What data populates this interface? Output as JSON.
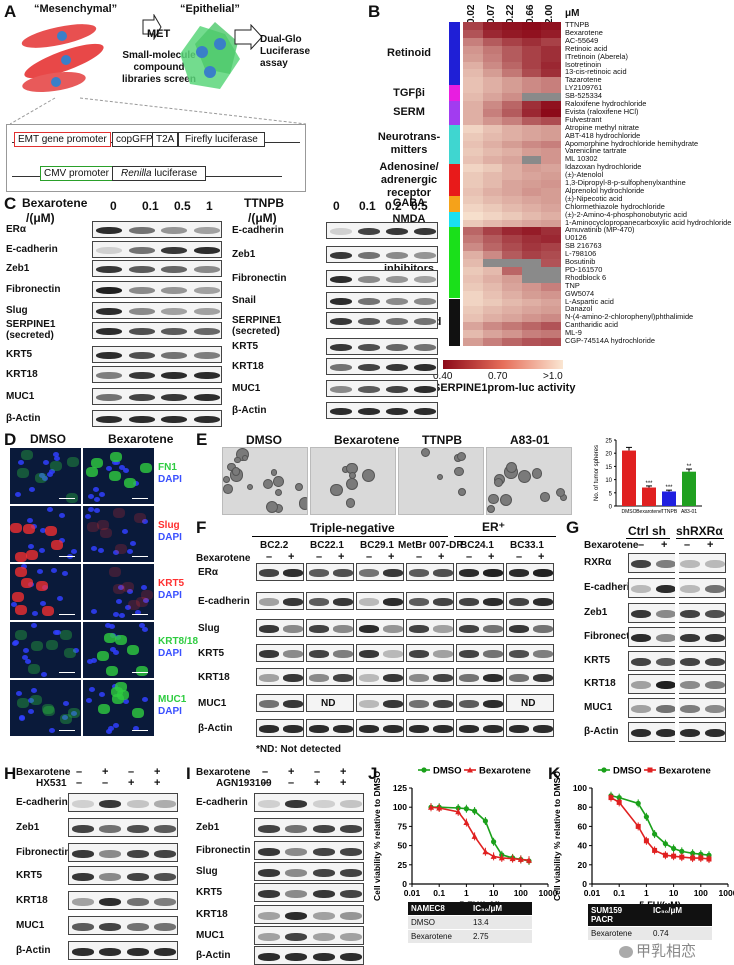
{
  "panel_labels": [
    "A",
    "B",
    "C",
    "D",
    "E",
    "F",
    "G",
    "H",
    "I",
    "J",
    "K"
  ],
  "A": {
    "mesenchymal": "“Mesenchymal”",
    "epithelial": "“Epithelial”",
    "met": "MET",
    "screen": [
      "Small-molecule",
      "compound",
      "libraries screen"
    ],
    "assay": [
      "Dual-Glo",
      "Luciferase",
      "assay"
    ],
    "construct1": {
      "promoter": "EMT gene promoter",
      "g1": "copGFP",
      "g2": "T2A",
      "g3": "Firefly luciferase"
    },
    "construct2": {
      "promoter": "CMV promoter",
      "g1a": "Renilla",
      "g1b": " luciferase"
    }
  },
  "B": {
    "conc": [
      "0.02",
      "0.07",
      "0.22",
      "0.66",
      "2.00"
    ],
    "unit": "μM",
    "compounds": [
      "TTNPB",
      "Bexarotene",
      "AC-55649",
      "Retinoic acid",
      "ITretinoin (Aberela)",
      "Isotretinoin",
      "13-cis-retinoic acid",
      "Tazarotene",
      "LY2109761",
      "SB-525334",
      "Raloxifene hydrochloride",
      "Evista (raloxifene HCl)",
      "Fulvestrant",
      "Atropine methyl nitrate",
      "ABT-418 hydrochloride",
      "Apomorphine hydrochloride hemihydrate",
      "Varenicline tartrate",
      "ML 10302",
      "Idazoxan hydrochloride",
      "(±)-Atenolol",
      "1,3-Dipropyl-8-p-sulfophenylxanthine",
      "Alprenolol hydrochloride",
      "(±)-Nipecotic acid",
      "Chlormethiazole hydrochloride",
      "(±)-2-Amino-4-phosphonobutyric acid",
      "1-Aminocyclopropanecarboxylic acid hydrochloride",
      "Amuvatinib (MP-470)",
      "U0126",
      "SB 216763",
      "L-798106",
      "Bosutinib",
      "PD-161570",
      "Rhodblock 6",
      "TNP",
      "GW5074",
      "L-Aspartic acid",
      "Danazol",
      "N-(4-amino-2-chlorophenyl)phthalimide",
      "Cantharidic acid",
      "ML-9",
      "CGP-74514A hydrochloride"
    ],
    "groups": [
      {
        "label": [
          "Retinoid"
        ],
        "color": "#1f1fd6",
        "start": 0,
        "count": 8
      },
      {
        "label": [
          "TGFβi"
        ],
        "color": "#e81ee0",
        "start": 8,
        "count": 2
      },
      {
        "label": [
          "SERM"
        ],
        "color": "#a23cf0",
        "start": 10,
        "count": 3
      },
      {
        "label": [
          "Neurotrans-",
          "mitters"
        ],
        "color": "#3fd6d0",
        "start": 13,
        "count": 5
      },
      {
        "label": [
          "Adenosine/",
          "adrenergic",
          "receptor"
        ],
        "color": "#e81a1a",
        "start": 18,
        "count": 4
      },
      {
        "label": [
          "GABA"
        ],
        "color": "#f5a21a",
        "start": 22,
        "count": 2
      },
      {
        "label": [
          "NMDA"
        ],
        "color": "#1ae0f0",
        "start": 24,
        "count": 2
      },
      {
        "label": [
          "Kinase",
          "inhibitors"
        ],
        "color": "#1ae01a",
        "start": 26,
        "count": 9
      },
      {
        "label": [
          "Unclassified"
        ],
        "color": "#111111",
        "start": 35,
        "count": 6
      }
    ],
    "heatmap": [
      [
        0.55,
        0.45,
        0.42,
        0.4,
        0.42
      ],
      [
        0.6,
        0.48,
        0.44,
        0.42,
        0.45
      ],
      [
        0.72,
        0.62,
        0.55,
        0.5,
        0.55
      ],
      [
        0.78,
        0.7,
        0.62,
        0.55,
        0.5
      ],
      [
        0.8,
        0.72,
        0.62,
        0.55,
        0.5
      ],
      [
        0.85,
        0.75,
        0.65,
        0.55,
        0.48
      ],
      [
        0.88,
        0.8,
        0.7,
        0.58,
        0.5
      ],
      [
        0.9,
        0.85,
        0.8,
        0.75,
        0.72
      ],
      [
        0.9,
        0.85,
        0.8,
        0.75,
        0.72
      ],
      [
        0.88,
        0.82,
        0.76,
        null,
        null
      ],
      [
        0.85,
        0.75,
        0.65,
        0.5,
        0.42
      ],
      [
        0.85,
        0.72,
        0.62,
        0.48,
        0.4
      ],
      [
        0.85,
        0.78,
        0.72,
        0.62,
        0.58
      ],
      [
        0.95,
        0.9,
        0.85,
        0.82,
        0.8
      ],
      [
        0.92,
        0.88,
        0.85,
        0.82,
        0.8
      ],
      [
        0.9,
        0.85,
        0.8,
        0.75,
        0.72
      ],
      [
        0.92,
        0.88,
        0.85,
        0.8,
        0.78
      ],
      [
        0.9,
        0.85,
        0.82,
        null,
        0.78
      ],
      [
        0.95,
        0.92,
        0.85,
        0.8,
        0.82
      ],
      [
        0.92,
        0.88,
        0.85,
        0.82,
        0.8
      ],
      [
        0.92,
        0.88,
        0.82,
        0.8,
        0.78
      ],
      [
        0.9,
        0.85,
        0.82,
        0.78,
        0.8
      ],
      [
        0.92,
        0.88,
        0.85,
        0.82,
        0.8
      ],
      [
        0.95,
        0.92,
        0.88,
        0.85,
        0.82
      ],
      [
        0.98,
        0.95,
        0.92,
        0.88,
        0.85
      ],
      [
        0.92,
        0.88,
        0.85,
        0.82,
        0.8
      ],
      [
        0.65,
        0.55,
        0.48,
        0.45,
        0.5
      ],
      [
        0.7,
        0.62,
        0.55,
        0.5,
        0.48
      ],
      [
        0.75,
        0.65,
        0.58,
        0.52,
        0.55
      ],
      [
        0.85,
        0.75,
        0.62,
        0.55,
        0.58
      ],
      [
        0.88,
        null,
        null,
        null,
        0.6
      ],
      [
        0.92,
        0.88,
        0.65,
        null,
        null
      ],
      [
        0.9,
        0.85,
        0.8,
        null,
        null
      ],
      [
        0.92,
        0.88,
        0.82,
        0.78,
        0.72
      ],
      [
        0.95,
        0.9,
        0.85,
        0.8,
        0.78
      ],
      [
        0.95,
        0.92,
        0.88,
        0.85,
        0.82
      ],
      [
        0.92,
        0.88,
        0.85,
        0.82,
        0.8
      ],
      [
        0.9,
        0.85,
        0.82,
        0.78,
        0.75
      ],
      [
        0.82,
        0.75,
        0.7,
        0.65,
        0.6
      ],
      [
        0.88,
        0.82,
        0.78,
        0.72,
        0.7
      ],
      [
        0.8,
        0.72,
        0.65,
        0.6,
        0.58
      ]
    ],
    "legend_ticks": [
      "0.40",
      "0.70",
      ">1.0"
    ],
    "legend_title": "SERPINE1prom-luc activity"
  },
  "C": {
    "left": {
      "drug": "Bexarotene",
      "unit": "/(μM)",
      "doses": [
        "0",
        "0.1",
        "0.5",
        "1"
      ],
      "rows": [
        "ERα",
        "E-cadherin",
        "Zeb1",
        "Fibronectin",
        "Slug",
        "SERPINE1 (secreted)",
        "KRT5",
        "KRT18",
        "MUC1",
        "β-Actin"
      ]
    },
    "right": {
      "drug": "TTNPB",
      "unit": "/(μM)",
      "doses": [
        "0",
        "0.1",
        "0.2",
        "0.5"
      ],
      "rows": [
        "E-cadherin",
        "Zeb1",
        "Fibronectin",
        "Snail",
        "SERPINE1 (secreted)",
        "KRT5",
        "KRT18",
        "MUC1",
        "β-Actin"
      ]
    }
  },
  "D": {
    "cols": [
      "DMSO",
      "Bexarotene"
    ],
    "rows": [
      {
        "marker": "FN1",
        "color": "#2ecc40"
      },
      {
        "marker": "Slug",
        "color": "#ff3030"
      },
      {
        "marker": "KRT5",
        "color": "#ff3030"
      },
      {
        "marker": "KRT8/18",
        "color": "#2ecc40"
      },
      {
        "marker": "MUC1",
        "color": "#2ecc40"
      }
    ],
    "dapi": "DAPI"
  },
  "E": {
    "images": [
      "DMSO",
      "Bexarotene",
      "TTNPB",
      "A83-01"
    ],
    "chart_data": {
      "type": "bar",
      "categories": [
        "DMSO",
        "Bexarotene",
        "TTNPB",
        "A83-01"
      ],
      "values": [
        21,
        7,
        5.5,
        13
      ],
      "errors": [
        1.2,
        0.6,
        0.5,
        1.0
      ],
      "colors": [
        "#e02020",
        "#e02020",
        "#2020e0",
        "#20a020"
      ],
      "sig": [
        "",
        "***",
        "***",
        "**"
      ],
      "ylabel": "No. of tumor spheres",
      "ylim": [
        0,
        25
      ],
      "yticks": [
        0,
        5,
        10,
        15,
        20,
        25
      ]
    }
  },
  "F": {
    "group1": "Triple-negative",
    "group2": "ER⁺",
    "lines": [
      "BC2.2",
      "BC22.1",
      "BC29.1",
      "MetBr 007-DR",
      "BC24.1",
      "BC33.1"
    ],
    "treat_label": "Bexarotene",
    "minus": "–",
    "plus": "+",
    "rows": [
      "ERα",
      "E-cadherin",
      "Slug",
      "KRT5",
      "KRT18",
      "MUC1",
      "β-Actin"
    ],
    "nd": "ND",
    "footnote": "*ND: Not detected"
  },
  "G": {
    "groups": [
      "Ctrl sh",
      "shRXRα"
    ],
    "treat_label": "Bexarotene",
    "rows": [
      "RXRα",
      "E-cadherin",
      "Zeb1",
      "Fibronectin",
      "KRT5",
      "KRT18",
      "MUC1",
      "β-Actin"
    ]
  },
  "H": {
    "treat1": "Bexarotene",
    "treat2": "HX531",
    "signs1": [
      "–",
      "+",
      "–",
      "+"
    ],
    "signs2": [
      "–",
      "–",
      "+",
      "+"
    ],
    "rows": [
      "E-cadherin",
      "Zeb1",
      "Fibronectin",
      "KRT5",
      "KRT18",
      "MUC1",
      "β-Actin"
    ]
  },
  "I": {
    "treat1": "Bexarotene",
    "treat2": "AGN193109",
    "signs1": [
      "–",
      "+",
      "–",
      "+"
    ],
    "signs2": [
      "–",
      "–",
      "+",
      "+"
    ],
    "rows": [
      "E-cadherin",
      "Zeb1",
      "Fibronectin",
      "Slug",
      "KRT5",
      "KRT18",
      "MUC1",
      "β-Actin"
    ]
  },
  "J": {
    "chart_data": {
      "type": "line",
      "xscale": "log",
      "xlim": [
        0.01,
        1000
      ],
      "ylim": [
        0,
        125
      ],
      "xticks": [
        "0.01",
        "0.1",
        "1",
        "10",
        "100",
        "1000"
      ],
      "yticks": [
        "0",
        "25",
        "50",
        "75",
        "100",
        "125"
      ],
      "xlabel": "5-FU/(μM)",
      "ylabel": "Cell viability % relative to DMSO",
      "series": [
        {
          "name": "DMSO",
          "color": "#1aa01a",
          "marker": "circle",
          "x": [
            0.05,
            0.1,
            0.5,
            1,
            2,
            5,
            10,
            20,
            50,
            100,
            200
          ],
          "y": [
            100,
            100,
            99,
            98,
            95,
            82,
            55,
            38,
            34,
            32,
            30
          ]
        },
        {
          "name": "Bexarotene",
          "color": "#e02020",
          "marker": "triangle",
          "x": [
            0.05,
            0.1,
            0.5,
            1,
            2,
            5,
            10,
            20,
            50,
            100,
            200
          ],
          "y": [
            100,
            99,
            94,
            80,
            62,
            42,
            36,
            34,
            33,
            32,
            31
          ]
        }
      ]
    },
    "table": {
      "h1": "NAMEC8",
      "h2": "IC₅₀/μM",
      "rows": [
        [
          "DMSO",
          "13.4"
        ],
        [
          "Bexarotene",
          "2.75"
        ]
      ]
    }
  },
  "K": {
    "chart_data": {
      "type": "line",
      "xscale": "log",
      "xlim": [
        0.01,
        1000
      ],
      "ylim": [
        0,
        100
      ],
      "xticks": [
        "0.01",
        "0.1",
        "1",
        "10",
        "100",
        "1000"
      ],
      "yticks": [
        "0",
        "20",
        "40",
        "60",
        "80",
        "100"
      ],
      "xlabel": "5-FU/(μM)",
      "ylabel": "Cell viability % relative to DMSO",
      "series": [
        {
          "name": "DMSO",
          "color": "#1aa01a",
          "marker": "circle",
          "x": [
            0.05,
            0.1,
            0.5,
            1,
            2,
            5,
            10,
            20,
            50,
            100,
            200
          ],
          "y": [
            92,
            90,
            84,
            70,
            52,
            42,
            37,
            34,
            32,
            31,
            30
          ]
        },
        {
          "name": "Bexarotene",
          "color": "#e02020",
          "marker": "square",
          "x": [
            0.05,
            0.1,
            0.5,
            1,
            2,
            5,
            10,
            20,
            50,
            100,
            200
          ],
          "y": [
            90,
            85,
            60,
            45,
            35,
            30,
            29,
            28,
            27,
            27,
            26
          ]
        }
      ]
    },
    "table": {
      "h1a": "SUM159",
      "h1b": "PACR",
      "h2": "IC₅₀/μM",
      "rows": [
        [
          "Bexarotene",
          "0.74"
        ]
      ]
    }
  },
  "watermark": "甲乳相恋"
}
